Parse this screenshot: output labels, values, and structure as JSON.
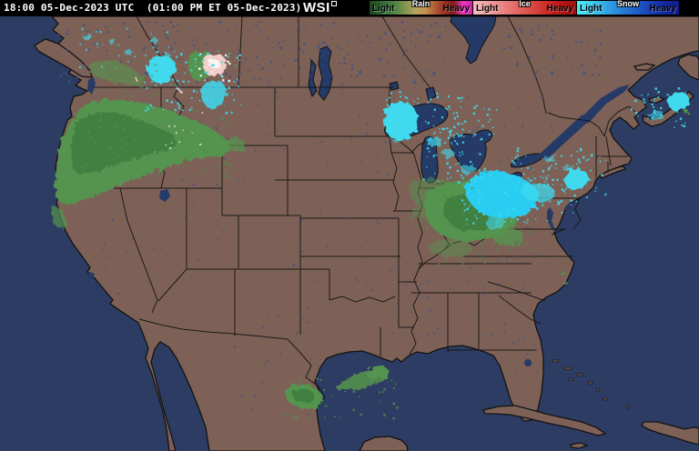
{
  "header": {
    "timestamp": "18:00 05-Dec-2023 UTC  (01:00 PM ET 05-Dec-2023)",
    "logo_text": "WSI"
  },
  "legend": {
    "bars": [
      {
        "label": "Rain",
        "min_label": "Light",
        "max_label": "Heavy",
        "colors": [
          "#1d451d",
          "#2c5f2e",
          "#3f783f",
          "#598747",
          "#8a9750",
          "#b7a45c",
          "#c29050",
          "#ad5c36",
          "#9e3026",
          "#7c1c1c",
          "#ee38c0",
          "#cb22a5"
        ]
      },
      {
        "label": "Ice",
        "min_label": "Light",
        "max_label": "Heavy",
        "colors": [
          "#f4bcbc",
          "#efa2a1",
          "#e98482",
          "#e26762",
          "#d94a44",
          "#cc2d28",
          "#b51616",
          "#a00f0f"
        ]
      },
      {
        "label": "Snow",
        "min_label": "Light",
        "max_label": "Heavy",
        "colors": [
          "#52ecf5",
          "#41ccf0",
          "#33a6e4",
          "#2a82d8",
          "#2160ca",
          "#1a41b4",
          "#14289e",
          "#0f1b86"
        ]
      }
    ]
  },
  "map": {
    "ocean_color": "#2d3c62",
    "lake_color": "#253a66",
    "land_color": "#7d6156",
    "border_color": "#121212",
    "precip_colors": {
      "rain": "#55944f",
      "rain_dark": "#3b7a3c",
      "rain_light": "#84b468",
      "snow": "#3fd9ee",
      "snow_bright": "#29cdf2",
      "ice": "#f2cdc9",
      "ice_white": "#fbf4f0"
    },
    "precipitation_areas": [
      {
        "region": "Pacific Northwest coast and Cascades",
        "type": "rain"
      },
      {
        "region": "Northern Idaho / Western Montana",
        "type": "snow"
      },
      {
        "region": "Central Montana",
        "type": "ice"
      },
      {
        "region": "Western Lake Superior / Minnesota arrowhead",
        "type": "snow"
      },
      {
        "region": "Michigan and Lake Michigan shore",
        "type": "snow"
      },
      {
        "region": "Ohio Valley (Indiana, Ohio, Kentucky, West Virginia)",
        "type": "rain"
      },
      {
        "region": "Northeast Ohio / Western Pennsylvania / Lake Erie",
        "type": "snow"
      },
      {
        "region": "Upstate New York and Maine",
        "type": "snow"
      },
      {
        "region": "Nova Scotia / Cape Breton",
        "type": "snow"
      },
      {
        "region": "South Texas and offshore Gulf of Mexico",
        "type": "rain"
      }
    ]
  }
}
